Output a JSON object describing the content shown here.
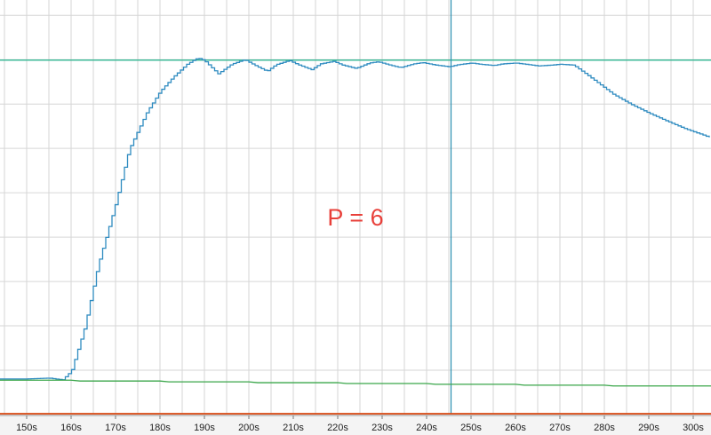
{
  "chart_data": {
    "type": "line",
    "grid": true,
    "xlim": [
      144,
      304
    ],
    "ylim": [
      0,
      100
    ],
    "x_ticks": [
      "150s",
      "160s",
      "170s",
      "180s",
      "190s",
      "200s",
      "210s",
      "220s",
      "230s",
      "240s",
      "250s",
      "260s",
      "270s",
      "280s",
      "290s",
      "300s"
    ],
    "x_tick_values": [
      150,
      160,
      170,
      180,
      190,
      200,
      210,
      220,
      230,
      240,
      250,
      260,
      270,
      280,
      290,
      300
    ],
    "annotation": {
      "text": "P = 6",
      "color": "#e8403a"
    },
    "setpoint": {
      "y": 85.5,
      "color": "#2db38f"
    },
    "cursor": {
      "x": 245.5,
      "color": "#2a8fb0"
    },
    "series": [
      {
        "color": "#2e8bc0",
        "stepped": true,
        "x": [
          144,
          150,
          155,
          157,
          158,
          160,
          163,
          166,
          170,
          173,
          177,
          180,
          183,
          186,
          188,
          189,
          190,
          193,
          196,
          199,
          201,
          204,
          206,
          209,
          211,
          214,
          216,
          219,
          221,
          224,
          227,
          229,
          232,
          234,
          237,
          239,
          242,
          245,
          247,
          250,
          252,
          255,
          257,
          260,
          263,
          265,
          268,
          270,
          273,
          276,
          279,
          282,
          286,
          290,
          294,
          298,
          302,
          304
        ],
        "y": [
          8.6,
          8.6,
          8.8,
          8.5,
          8.4,
          10.5,
          21,
          36,
          51,
          64,
          73,
          78,
          81.5,
          84.5,
          85.8,
          85.9,
          85.3,
          82.2,
          84.5,
          85.6,
          84.4,
          82.8,
          84.4,
          85.4,
          84.4,
          83.2,
          84.6,
          85.2,
          84.3,
          83.5,
          84.8,
          85.1,
          84.2,
          83.7,
          84.6,
          84.9,
          84.3,
          83.9,
          84.4,
          84.8,
          84.5,
          84.2,
          84.6,
          84.8,
          84.4,
          84.1,
          84.3,
          84.5,
          84.3,
          82,
          79.6,
          77.2,
          74.8,
          72.7,
          70.8,
          69,
          67.5,
          66.7
        ]
      },
      {
        "color": "#3aa64a",
        "x": [
          144,
          160,
          162,
          180,
          182,
          200,
          202,
          220,
          222,
          240,
          242,
          260,
          262,
          280,
          282,
          304
        ],
        "y": [
          8.3,
          8.3,
          8.1,
          8.1,
          7.9,
          7.9,
          7.7,
          7.7,
          7.5,
          7.5,
          7.3,
          7.3,
          7.1,
          7.1,
          6.9,
          6.9
        ]
      },
      {
        "color": "#d84e1a",
        "x": [
          144,
          304
        ],
        "y": [
          0.2,
          0.2
        ]
      }
    ]
  }
}
